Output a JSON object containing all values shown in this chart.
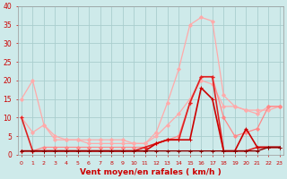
{
  "x": [
    0,
    1,
    2,
    3,
    4,
    5,
    6,
    7,
    8,
    9,
    10,
    11,
    12,
    13,
    14,
    15,
    16,
    17,
    18,
    19,
    20,
    21,
    22,
    23
  ],
  "bg_color": "#ceeaea",
  "grid_color": "#aacece",
  "lines": [
    {
      "y": [
        15,
        20,
        8,
        5,
        4,
        4,
        3,
        3,
        3,
        3,
        3,
        3,
        6,
        14,
        23,
        35,
        37,
        36,
        16,
        13,
        12,
        11,
        13,
        13
      ],
      "color": "#ffaaaa",
      "lw": 0.9,
      "marker": "D",
      "ms": 2.0
    },
    {
      "y": [
        10,
        6,
        8,
        4,
        4,
        4,
        4,
        4,
        4,
        4,
        3,
        3,
        5,
        8,
        11,
        15,
        20,
        19,
        13,
        13,
        12,
        12,
        12,
        13
      ],
      "color": "#ffaaaa",
      "lw": 0.9,
      "marker": "D",
      "ms": 2.0
    },
    {
      "y": [
        1,
        1,
        2,
        2,
        2,
        2,
        2,
        2,
        2,
        2,
        2,
        2,
        3,
        4,
        5,
        14,
        21,
        21,
        10,
        5,
        6,
        7,
        13,
        13
      ],
      "color": "#ff8888",
      "lw": 0.9,
      "marker": "D",
      "ms": 2.0
    },
    {
      "y": [
        10,
        1,
        1,
        1,
        1,
        1,
        1,
        1,
        1,
        1,
        1,
        2,
        3,
        4,
        4,
        14,
        21,
        21,
        1,
        1,
        1,
        2,
        2,
        2
      ],
      "color": "#dd2222",
      "lw": 1.2,
      "marker": "+",
      "ms": 3.5
    },
    {
      "y": [
        1,
        1,
        1,
        1,
        1,
        1,
        1,
        1,
        1,
        1,
        1,
        1,
        3,
        4,
        4,
        4,
        18,
        15,
        1,
        1,
        7,
        2,
        2,
        2
      ],
      "color": "#cc0000",
      "lw": 1.2,
      "marker": "+",
      "ms": 3.5
    },
    {
      "y": [
        1,
        1,
        1,
        1,
        1,
        1,
        1,
        1,
        1,
        1,
        1,
        1,
        1,
        1,
        1,
        1,
        1,
        1,
        1,
        1,
        1,
        1,
        2,
        2
      ],
      "color": "#880000",
      "lw": 1.0,
      "marker": "+",
      "ms": 3.0
    }
  ],
  "xlim": [
    0,
    23
  ],
  "ylim": [
    0,
    40
  ],
  "yticks": [
    0,
    5,
    10,
    15,
    20,
    25,
    30,
    35,
    40
  ],
  "xticks": [
    0,
    1,
    2,
    3,
    4,
    5,
    6,
    7,
    8,
    9,
    10,
    11,
    12,
    13,
    14,
    15,
    16,
    17,
    18,
    19,
    20,
    21,
    22,
    23
  ],
  "xlabel": "Vent moyen/en rafales ( km/h )",
  "tick_color": "#cc0000",
  "label_color": "#cc0000"
}
